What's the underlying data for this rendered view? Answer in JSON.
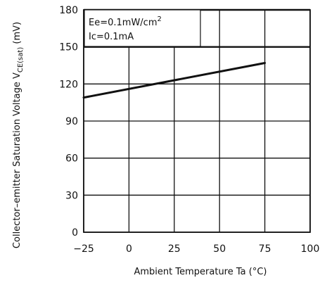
{
  "chart_data": {
    "type": "line",
    "title": "",
    "xlabel": "Ambient Temperature Ta (°C)",
    "ylabel": "Collector–emitter Saturation Voltage V",
    "ylabel_sub": "CE(sat)",
    "ylabel_unit": "(mV)",
    "xlim": [
      -25,
      100
    ],
    "ylim": [
      0,
      180
    ],
    "x_ticks": [
      -25,
      0,
      25,
      50,
      75,
      100
    ],
    "x_tick_labels": [
      "−25",
      "0",
      "25",
      "50",
      "75",
      "100"
    ],
    "y_ticks": [
      0,
      30,
      60,
      90,
      120,
      150,
      180
    ],
    "y_tick_labels": [
      "0",
      "30",
      "60",
      "90",
      "120",
      "150",
      "180"
    ],
    "grid": true,
    "annotations": [
      "Ee=0.1mW/cm",
      "Ic=0.1mA"
    ],
    "annotation_superscript": "2",
    "series": [
      {
        "x": [
          -25,
          75
        ],
        "y": [
          109,
          137
        ]
      }
    ],
    "colors": {
      "line": "#111111",
      "grid": "#111111",
      "background": "#ffffff"
    }
  }
}
